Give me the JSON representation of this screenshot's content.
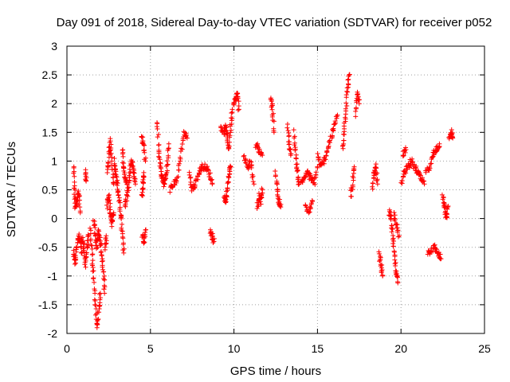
{
  "chart_data": {
    "type": "scatter",
    "title": "Day 091 of 2018, Sidereal Day-to-day VTEC variation (SDTVAR) for receiver p052",
    "xlabel": "GPS time / hours",
    "ylabel": "SDTVAR / TECUs",
    "xlim": [
      0,
      25
    ],
    "ylim": [
      -2,
      3
    ],
    "xticks": [
      0,
      5,
      10,
      15,
      20,
      25
    ],
    "yticks": [
      -2,
      -1.5,
      -1,
      -0.5,
      0,
      0.5,
      1,
      1.5,
      2,
      2.5,
      3
    ],
    "xtick_labels": [
      "0",
      "5",
      "10",
      "15",
      "20",
      "25"
    ],
    "ytick_labels": [
      "-2",
      "-1.5",
      "-1",
      "-0.5",
      "0",
      "0.5",
      "1",
      "1.5",
      "2",
      "2.5",
      "3"
    ],
    "grid": true,
    "marker": "+",
    "color": "#ff0000",
    "series": [
      {
        "name": "SDTVAR",
        "tracks": [
          [
            [
              0.4,
              0.9
            ],
            [
              0.45,
              0.5
            ],
            [
              0.5,
              0.2
            ],
            [
              0.6,
              0.3
            ],
            [
              0.7,
              0.5
            ],
            [
              0.8,
              0.1
            ]
          ],
          [
            [
              0.4,
              -0.6
            ],
            [
              0.5,
              -0.8
            ],
            [
              0.6,
              -0.5
            ],
            [
              0.7,
              -0.3
            ],
            [
              0.8,
              -0.4
            ],
            [
              0.9,
              -0.6
            ]
          ],
          [
            [
              0.9,
              -0.3
            ],
            [
              1.0,
              -0.5
            ],
            [
              1.1,
              -0.8
            ],
            [
              1.2,
              -0.5
            ],
            [
              1.3,
              -0.3
            ]
          ],
          [
            [
              1.1,
              0.8
            ],
            [
              1.15,
              0.65
            ]
          ],
          [
            [
              1.4,
              -0.2
            ],
            [
              1.5,
              -0.6
            ],
            [
              1.6,
              -1.0
            ],
            [
              1.7,
              -1.5
            ],
            [
              1.8,
              -1.9
            ],
            [
              1.9,
              -1.6
            ],
            [
              2.0,
              -1.3
            ]
          ],
          [
            [
              1.6,
              0.0
            ],
            [
              1.7,
              -0.3
            ],
            [
              1.8,
              -0.5
            ],
            [
              1.9,
              -0.2
            ],
            [
              2.0,
              -0.4
            ],
            [
              2.1,
              -0.7
            ],
            [
              2.2,
              -1.0
            ],
            [
              2.25,
              -1.3
            ]
          ],
          [
            [
              2.3,
              -0.5
            ],
            [
              2.35,
              -0.3
            ]
          ],
          [
            [
              2.4,
              0.8
            ],
            [
              2.5,
              1.1
            ],
            [
              2.6,
              1.4
            ],
            [
              2.7,
              0.9
            ],
            [
              2.8,
              0.6
            ]
          ],
          [
            [
              2.4,
              0.2
            ],
            [
              2.5,
              0.4
            ],
            [
              2.6,
              0.1
            ],
            [
              2.7,
              -0.1
            ],
            [
              2.8,
              0.1
            ]
          ],
          [
            [
              2.8,
              1.0
            ],
            [
              2.9,
              0.8
            ],
            [
              3.0,
              0.6
            ],
            [
              3.1,
              0.4
            ],
            [
              3.2,
              0.1
            ],
            [
              3.3,
              -0.2
            ],
            [
              3.4,
              -0.6
            ]
          ],
          [
            [
              3.3,
              1.2
            ],
            [
              3.4,
              0.9
            ],
            [
              3.5,
              0.7
            ],
            [
              3.6,
              0.6
            ]
          ],
          [
            [
              3.5,
              0.2
            ],
            [
              3.6,
              0.4
            ],
            [
              3.7,
              0.6
            ],
            [
              3.8,
              0.9
            ],
            [
              3.9,
              1.0
            ],
            [
              4.0,
              0.8
            ],
            [
              4.1,
              0.6
            ]
          ],
          [
            [
              4.5,
              0.4
            ],
            [
              4.55,
              0.6
            ],
            [
              4.6,
              0.8
            ]
          ],
          [
            [
              4.5,
              1.4
            ],
            [
              4.6,
              1.3
            ],
            [
              4.7,
              1.0
            ]
          ],
          [
            [
              4.5,
              -0.3
            ],
            [
              4.6,
              -0.4
            ],
            [
              4.7,
              -0.2
            ]
          ],
          [
            [
              5.4,
              1.7
            ],
            [
              5.5,
              1.2
            ],
            [
              5.6,
              0.9
            ],
            [
              5.7,
              0.7
            ],
            [
              5.8,
              0.6
            ],
            [
              5.9,
              0.7
            ],
            [
              6.0,
              0.9
            ],
            [
              6.1,
              1.3
            ]
          ],
          [
            [
              6.2,
              0.5
            ],
            [
              6.4,
              0.6
            ],
            [
              6.6,
              0.7
            ],
            [
              6.8,
              1.1
            ],
            [
              7.0,
              1.5
            ],
            [
              7.2,
              1.4
            ]
          ],
          [
            [
              7.3,
              0.8
            ],
            [
              7.5,
              0.5
            ],
            [
              7.7,
              0.6
            ],
            [
              7.9,
              0.8
            ],
            [
              8.1,
              0.9
            ],
            [
              8.3,
              0.9
            ],
            [
              8.5,
              0.8
            ],
            [
              8.7,
              0.6
            ]
          ],
          [
            [
              8.6,
              -0.2
            ],
            [
              8.7,
              -0.3
            ],
            [
              8.8,
              -0.4
            ]
          ],
          [
            [
              9.2,
              1.6
            ],
            [
              9.4,
              1.5
            ],
            [
              9.5,
              1.6
            ],
            [
              9.6,
              1.4
            ],
            [
              9.7,
              1.2
            ],
            [
              9.8,
              1.6
            ],
            [
              9.9,
              1.9
            ]
          ],
          [
            [
              9.4,
              0.4
            ],
            [
              9.5,
              0.3
            ],
            [
              9.6,
              0.5
            ],
            [
              9.7,
              0.8
            ],
            [
              9.8,
              0.9
            ]
          ],
          [
            [
              10.0,
              2.0
            ],
            [
              10.1,
              2.1
            ],
            [
              10.2,
              2.2
            ],
            [
              10.3,
              1.9
            ]
          ],
          [
            [
              10.6,
              1.1
            ],
            [
              10.8,
              0.9
            ],
            [
              11.0,
              1.0
            ],
            [
              11.2,
              0.6
            ]
          ],
          [
            [
              11.3,
              1.3
            ],
            [
              11.5,
              1.2
            ],
            [
              11.7,
              1.1
            ]
          ],
          [
            [
              11.4,
              0.2
            ],
            [
              11.5,
              0.4
            ],
            [
              11.6,
              0.3
            ],
            [
              11.7,
              0.5
            ]
          ],
          [
            [
              12.2,
              2.1
            ],
            [
              12.3,
              1.9
            ],
            [
              12.4,
              1.5
            ]
          ],
          [
            [
              12.5,
              0.8
            ],
            [
              12.6,
              0.5
            ],
            [
              12.7,
              0.3
            ],
            [
              12.8,
              0.2
            ]
          ],
          [
            [
              13.2,
              1.6
            ],
            [
              13.3,
              1.3
            ],
            [
              13.4,
              1.1
            ]
          ],
          [
            [
              13.6,
              1.5
            ],
            [
              13.7,
              1.1
            ],
            [
              13.8,
              0.8
            ],
            [
              13.9,
              0.6
            ]
          ],
          [
            [
              14.0,
              0.6
            ],
            [
              14.2,
              0.7
            ],
            [
              14.4,
              0.8
            ],
            [
              14.6,
              0.7
            ],
            [
              14.8,
              0.6
            ],
            [
              15.0,
              0.9
            ]
          ],
          [
            [
              15.0,
              1.1
            ],
            [
              15.2,
              0.9
            ],
            [
              15.4,
              1.0
            ],
            [
              15.6,
              1.2
            ],
            [
              15.8,
              1.4
            ],
            [
              16.0,
              1.6
            ],
            [
              16.2,
              1.8
            ]
          ],
          [
            [
              14.3,
              0.2
            ],
            [
              14.5,
              0.1
            ],
            [
              14.7,
              0.3
            ]
          ],
          [
            [
              16.5,
              1.2
            ],
            [
              16.6,
              1.5
            ],
            [
              16.7,
              1.9
            ],
            [
              16.8,
              2.3
            ],
            [
              16.9,
              2.5
            ]
          ],
          [
            [
              17.0,
              0.4
            ],
            [
              17.1,
              0.6
            ],
            [
              17.2,
              0.9
            ]
          ],
          [
            [
              17.3,
              1.8
            ],
            [
              17.4,
              2.2
            ],
            [
              17.5,
              2.0
            ]
          ],
          [
            [
              18.3,
              0.5
            ],
            [
              18.4,
              0.8
            ],
            [
              18.5,
              0.9
            ],
            [
              18.6,
              0.6
            ]
          ],
          [
            [
              18.7,
              -0.6
            ],
            [
              18.8,
              -0.8
            ],
            [
              18.9,
              -1.0
            ]
          ],
          [
            [
              19.3,
              0.1
            ],
            [
              19.4,
              0.0
            ],
            [
              19.5,
              -0.3
            ],
            [
              19.6,
              -0.6
            ],
            [
              19.7,
              -0.9
            ],
            [
              19.8,
              -1.1
            ]
          ],
          [
            [
              19.6,
              0.1
            ],
            [
              19.7,
              -0.1
            ],
            [
              19.9,
              -0.3
            ]
          ],
          [
            [
              20.0,
              0.6
            ],
            [
              20.2,
              0.8
            ],
            [
              20.4,
              0.9
            ],
            [
              20.6,
              1.0
            ],
            [
              20.8,
              0.9
            ],
            [
              21.0,
              0.8
            ],
            [
              21.2,
              0.7
            ],
            [
              21.4,
              0.6
            ]
          ],
          [
            [
              20.1,
              1.1
            ],
            [
              20.3,
              1.2
            ]
          ],
          [
            [
              21.5,
              0.8
            ],
            [
              21.7,
              0.9
            ],
            [
              21.9,
              1.1
            ],
            [
              22.1,
              1.2
            ],
            [
              22.3,
              1.3
            ]
          ],
          [
            [
              21.6,
              -0.6
            ],
            [
              21.8,
              -0.55
            ],
            [
              22.0,
              -0.5
            ],
            [
              22.2,
              -0.6
            ],
            [
              22.4,
              -0.7
            ]
          ],
          [
            [
              22.5,
              0.4
            ],
            [
              22.6,
              0.2
            ],
            [
              22.7,
              0.0
            ],
            [
              22.8,
              0.2
            ]
          ],
          [
            [
              22.9,
              1.4
            ],
            [
              23.0,
              1.5
            ],
            [
              23.1,
              1.4
            ]
          ]
        ]
      }
    ]
  }
}
